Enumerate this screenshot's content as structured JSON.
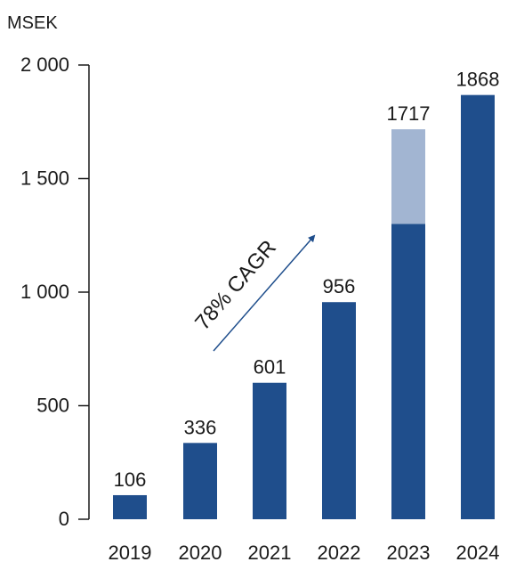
{
  "chart_data": {
    "type": "bar",
    "unit_label": "MSEK",
    "categories": [
      "2019",
      "2020",
      "2021",
      "2022",
      "2023",
      "2024"
    ],
    "values": [
      106,
      336,
      601,
      956,
      1717,
      1868
    ],
    "series": [
      {
        "values": [
          106,
          336,
          601,
          956,
          1300,
          1868
        ]
      },
      {
        "values": [
          0,
          0,
          0,
          0,
          417,
          0
        ]
      }
    ],
    "data_labels": [
      "106",
      "336",
      "601",
      "956",
      "1717",
      "1868"
    ],
    "y_ticks": [
      0,
      500,
      1000,
      1500,
      2000
    ],
    "y_tick_labels": [
      "0",
      "500",
      "1 000",
      "1 500",
      "2 000"
    ],
    "ylim": [
      0,
      2000
    ],
    "annotation": "78% CAGR",
    "colors": {
      "primary": "#1f4e8c",
      "secondary": "#a2b5d2",
      "axis": "#1a1a1a"
    }
  }
}
